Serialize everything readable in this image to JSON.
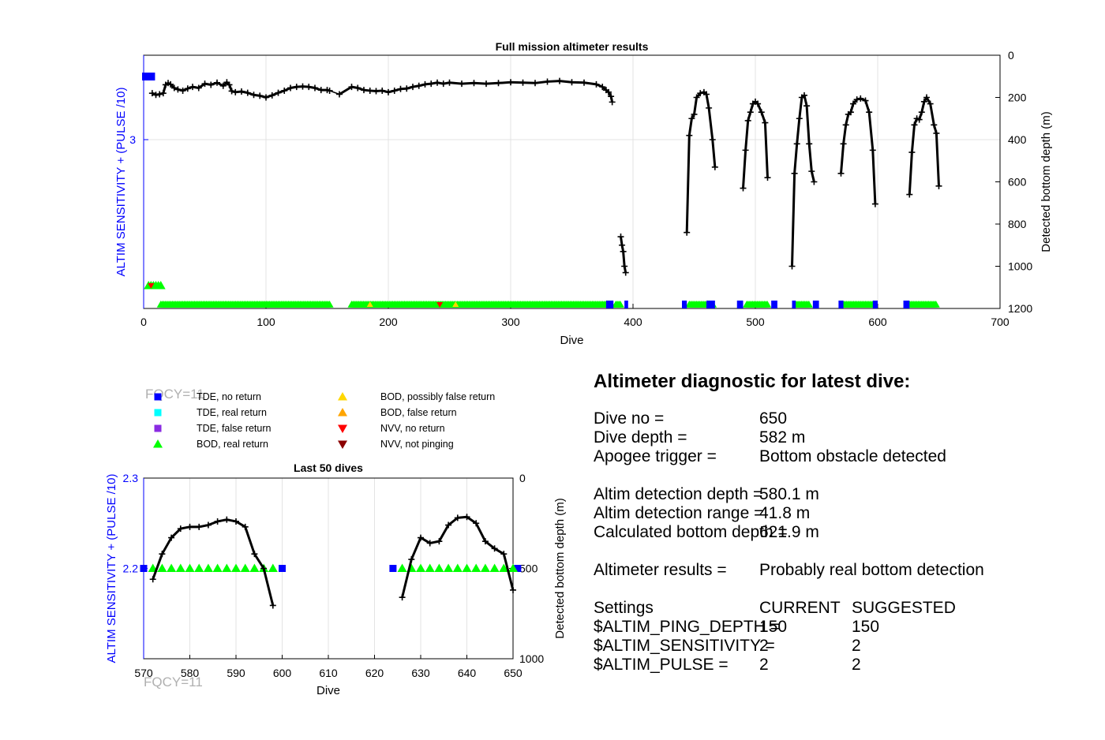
{
  "colors": {
    "tde_no_return": "#0000ff",
    "tde_real_return": "#00ffff",
    "tde_false_return": "#8a2be2",
    "bod_real_return": "#00ff00",
    "bod_possibly_false": "#ffd700",
    "bod_false_return": "#ffa500",
    "nvv_no_return": "#ff0000",
    "nvv_not_pinging": "#8b0000",
    "depth_line": "#000000",
    "left_axis": "#0000ff"
  },
  "chart_data": [
    {
      "type": "line",
      "title": "Full mission altimeter results",
      "xlabel": "Dive",
      "ylabel_left": "ALTIM SENSITIVITY + (PULSE /10)",
      "ylabel_right": "Detected bottom depth (m)",
      "xlim": [
        0,
        700
      ],
      "xticks": [
        0,
        100,
        200,
        300,
        400,
        500,
        600,
        700
      ],
      "yticks_left": [
        3
      ],
      "yticks_right": [
        0,
        200,
        400,
        600,
        800,
        1000,
        1200
      ],
      "ylim_right": [
        0,
        1200
      ],
      "right_axis_reversed": true,
      "grid": true,
      "depth_series": [
        {
          "x": [
            7,
            10,
            13,
            16,
            18,
            20,
            22,
            25,
            28,
            32,
            36,
            40,
            45,
            50,
            55,
            60,
            65,
            68,
            70,
            72,
            75,
            80,
            85,
            90,
            95,
            100,
            105,
            110,
            115,
            120,
            125,
            130,
            135,
            140,
            145,
            150,
            152
          ],
          "y": [
            180,
            188,
            185,
            180,
            140,
            132,
            138,
            155,
            162,
            168,
            158,
            150,
            155,
            135,
            140,
            130,
            145,
            128,
            140,
            170,
            175,
            172,
            178,
            188,
            192,
            200,
            190,
            178,
            168,
            155,
            150,
            148,
            150,
            155,
            165,
            165,
            168
          ]
        },
        {
          "x": [
            160,
            170,
            175,
            180,
            185,
            190,
            195,
            200,
            205,
            210,
            215,
            220,
            225,
            230,
            235,
            240,
            245,
            250,
            260,
            270,
            280,
            290,
            300,
            310,
            320,
            330,
            340,
            350,
            360,
            370,
            375,
            378,
            380,
            382,
            383
          ],
          "y": [
            185,
            150,
            155,
            165,
            168,
            170,
            168,
            175,
            168,
            160,
            158,
            150,
            145,
            138,
            135,
            130,
            135,
            130,
            135,
            132,
            135,
            132,
            128,
            130,
            132,
            125,
            122,
            128,
            130,
            138,
            150,
            165,
            175,
            195,
            222
          ]
        },
        {
          "x": [
            390,
            391,
            392,
            393,
            394
          ],
          "y": [
            860,
            900,
            930,
            1000,
            1030
          ]
        },
        {
          "x": [
            444,
            446,
            448,
            450,
            452,
            455,
            458,
            460,
            462,
            465,
            467
          ],
          "y": [
            840,
            380,
            300,
            280,
            200,
            180,
            175,
            185,
            250,
            400,
            530
          ]
        },
        {
          "x": [
            490,
            492,
            494,
            496,
            498,
            500,
            502,
            505,
            508,
            510
          ],
          "y": [
            630,
            450,
            310,
            270,
            230,
            220,
            230,
            270,
            320,
            580
          ]
        },
        {
          "x": [
            530,
            532,
            534,
            536,
            538,
            540,
            542,
            544,
            546,
            548
          ],
          "y": [
            1000,
            560,
            420,
            300,
            200,
            190,
            240,
            420,
            550,
            600
          ]
        },
        {
          "x": [
            570,
            572,
            574,
            576,
            578,
            580,
            583,
            586,
            590,
            593,
            596,
            598
          ],
          "y": [
            560,
            420,
            330,
            280,
            270,
            230,
            210,
            205,
            215,
            270,
            450,
            705
          ]
        },
        {
          "x": [
            626,
            628,
            630,
            632,
            634,
            636,
            638,
            640,
            643,
            646,
            648,
            650
          ],
          "y": [
            660,
            460,
            330,
            300,
            305,
            270,
            220,
            200,
            230,
            330,
            370,
            620
          ]
        }
      ],
      "bod_real_return_ranges": [
        [
          14,
          152
        ],
        [
          170,
          383
        ],
        [
          386,
          390
        ],
        [
          446,
          466
        ],
        [
          493,
          510
        ],
        [
          533,
          545
        ],
        [
          572,
          597
        ],
        [
          626,
          648
        ]
      ],
      "tde_no_return_ranges": [
        [
          460,
          467
        ],
        [
          485,
          490
        ],
        [
          513,
          518
        ],
        [
          530,
          533
        ],
        [
          547,
          552
        ],
        [
          568,
          572
        ],
        [
          596,
          600
        ],
        [
          621,
          626
        ],
        [
          378,
          384
        ],
        [
          393,
          396
        ],
        [
          440,
          444
        ]
      ],
      "tde_at_start": [
        [
          0,
          8
        ]
      ],
      "early_bod_points_x": [
        4,
        6,
        8,
        10,
        12,
        14
      ],
      "nvv_no_return_points": [
        [
          6,
          1.1
        ],
        [
          242,
          1195
        ]
      ],
      "bod_possibly_false_points_x": [
        185,
        255
      ]
    },
    {
      "type": "line",
      "title": "Last 50 dives",
      "xlabel": "Dive",
      "ylabel_left": "ALTIM SENSITIVITY + (PULSE /10)",
      "ylabel_right": "Detected bottom depth (m)",
      "xlim": [
        570,
        650
      ],
      "xticks": [
        570,
        580,
        590,
        600,
        610,
        620,
        630,
        640,
        650
      ],
      "ylim_left": [
        2.1,
        2.3
      ],
      "yticks_left": [
        2.2,
        2.3
      ],
      "ylim_right": [
        0,
        1000
      ],
      "yticks_right": [
        0,
        500,
        1000
      ],
      "right_axis_reversed": true,
      "grid": true,
      "depth_series": [
        {
          "x": [
            572,
            574,
            576,
            578,
            580,
            582,
            584,
            586,
            588,
            590,
            592,
            594,
            596,
            598
          ],
          "y": [
            560,
            420,
            330,
            280,
            270,
            270,
            260,
            240,
            230,
            240,
            270,
            420,
            500,
            705
          ]
        },
        {
          "x": [
            626,
            628,
            630,
            632,
            634,
            636,
            638,
            640,
            642,
            644,
            646,
            648,
            650
          ],
          "y": [
            660,
            450,
            330,
            360,
            350,
            260,
            220,
            215,
            250,
            350,
            390,
            420,
            620
          ]
        }
      ],
      "bod_real_return_x": [
        572,
        574,
        576,
        578,
        580,
        582,
        584,
        586,
        588,
        590,
        592,
        594,
        596,
        598,
        626,
        628,
        630,
        632,
        634,
        636,
        638,
        640,
        642,
        644,
        646,
        648,
        650
      ],
      "tde_no_return_x": [
        570,
        600,
        624,
        651
      ],
      "bod_level": 2.2
    }
  ],
  "legend": {
    "watermark": "FQCY=11",
    "items": [
      {
        "label": "TDE, no return",
        "marker": "square",
        "color": "#0000ff"
      },
      {
        "label": "TDE, real return",
        "marker": "square",
        "color": "#00ffff"
      },
      {
        "label": "TDE, false return",
        "marker": "square",
        "color": "#8a2be2"
      },
      {
        "label": "BOD, real return",
        "marker": "triangle-up",
        "color": "#00ff00"
      },
      {
        "label": "BOD, possibly false return",
        "marker": "triangle-up",
        "color": "#ffd700"
      },
      {
        "label": "BOD, false return",
        "marker": "triangle-up",
        "color": "#ffa500"
      },
      {
        "label": "NVV, no return",
        "marker": "triangle-down",
        "color": "#ff0000"
      },
      {
        "label": "NVV, not pinging",
        "marker": "triangle-down",
        "color": "#8b0000"
      }
    ]
  },
  "diagnostic": {
    "title": "Altimeter diagnostic for latest dive:",
    "dive_no_label": "Dive no =",
    "dive_no_value": "650",
    "dive_depth_label": "Dive depth =",
    "dive_depth_value": "582 m",
    "apogee_label": "Apogee trigger =",
    "apogee_value": "Bottom obstacle detected",
    "detect_depth_label": "Altim detection depth =",
    "detect_depth_value": "580.1 m",
    "detect_range_label": "Altim detection range =",
    "detect_range_value": "41.8 m",
    "calc_depth_label": "Calculated bottom depth =",
    "calc_depth_value": "621.9 m",
    "results_label": "Altimeter results =",
    "results_value": "Probably real bottom detection",
    "settings_label": "Settings",
    "current_label": "CURRENT",
    "suggested_label": "SUGGESTED",
    "ping_depth_label": "$ALTIM_PING_DEPTH =",
    "ping_depth_current": "150",
    "ping_depth_suggested": "150",
    "sensitivity_label": "$ALTIM_SENSITIVITY =",
    "sensitivity_current": "2",
    "sensitivity_suggested": "2",
    "pulse_label": "$ALTIM_PULSE =",
    "pulse_current": "2",
    "pulse_suggested": "2"
  }
}
